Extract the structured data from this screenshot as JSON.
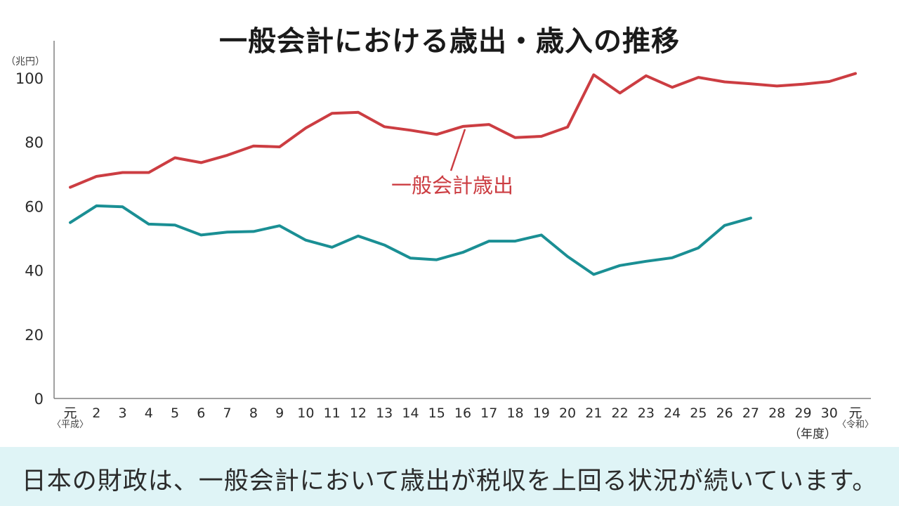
{
  "chart_data": {
    "type": "line",
    "title": "一般会計における歳出・歳入の推移",
    "unit": "（兆円）",
    "x_label": "（年度）",
    "ylim": [
      0,
      100
    ],
    "y_ticks": [
      0,
      20,
      40,
      60,
      80,
      100
    ],
    "categories": [
      "元",
      "2",
      "3",
      "4",
      "5",
      "6",
      "7",
      "8",
      "9",
      "10",
      "11",
      "12",
      "13",
      "14",
      "15",
      "16",
      "17",
      "18",
      "19",
      "20",
      "21",
      "22",
      "23",
      "24",
      "25",
      "26",
      "27",
      "28",
      "29",
      "30",
      "元"
    ],
    "era_labels": [
      {
        "index": 0,
        "text": "〈平成〉"
      },
      {
        "index": 30,
        "text": "〈令和〉"
      }
    ],
    "series": [
      {
        "name": "一般会計歳出",
        "color": "#cc3d42",
        "values": [
          65.9,
          69.3,
          70.5,
          70.5,
          75.1,
          73.6,
          75.9,
          78.8,
          78.5,
          84.4,
          89.0,
          89.3,
          84.8,
          83.7,
          82.4,
          84.9,
          85.5,
          81.4,
          81.8,
          84.7,
          101.0,
          95.3,
          100.7,
          97.1,
          100.2,
          98.8,
          98.2,
          97.5,
          98.1,
          98.9,
          101.4
        ]
      },
      {
        "color": "#1a8f94",
        "values": [
          54.9,
          60.1,
          59.8,
          54.4,
          54.1,
          51.0,
          51.9,
          52.1,
          53.9,
          49.4,
          47.2,
          50.7,
          47.9,
          43.8,
          43.3,
          45.6,
          49.1,
          49.1,
          51.0,
          44.3,
          38.7,
          41.5,
          42.8,
          43.9,
          47.0,
          54.0,
          56.3,
          null,
          null,
          null,
          null
        ]
      }
    ]
  },
  "caption": "日本の財政は、一般会計において歳出が税収を上回る状況が続いています。"
}
